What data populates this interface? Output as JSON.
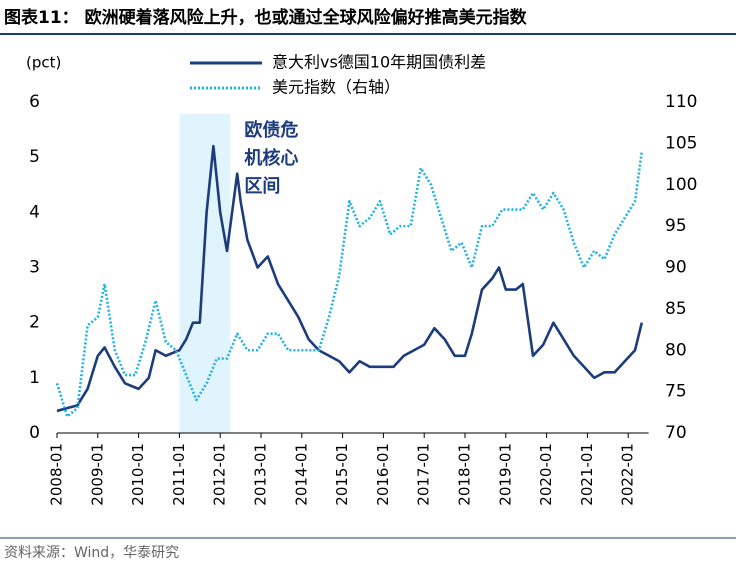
{
  "chart_data": {
    "type": "line",
    "title": "图表11：  欧洲硬着落风险上升，也或通过全球风险偏好推高美元指数",
    "y_unit": "(pct)",
    "source": "资料来源：Wind，华泰研究",
    "annotation": {
      "lines": [
        "欧债危",
        "机核心",
        "区间"
      ],
      "span": [
        "2011-01",
        "2012-04"
      ],
      "color": "#dff4fc"
    },
    "xlim": [
      "2008-01",
      "2022-07"
    ],
    "xticks": [
      "2008-01",
      "2009-01",
      "2010-01",
      "2011-01",
      "2012-01",
      "2013-01",
      "2014-01",
      "2015-01",
      "2016-01",
      "2017-01",
      "2018-01",
      "2019-01",
      "2020-01",
      "2021-01",
      "2022-01"
    ],
    "ylim": [
      0,
      6
    ],
    "yticks": [
      0,
      1,
      2,
      3,
      4,
      5,
      6
    ],
    "y2lim": [
      70,
      110
    ],
    "y2ticks": [
      70,
      75,
      80,
      85,
      90,
      95,
      100,
      105,
      110
    ],
    "series": [
      {
        "name": "意大利vs德国10年期国债利差",
        "color": "#1c3c7c",
        "style": "solid",
        "x": [
          "2008-01",
          "2008-04",
          "2008-07",
          "2008-10",
          "2009-01",
          "2009-03",
          "2009-06",
          "2009-09",
          "2010-01",
          "2010-04",
          "2010-06",
          "2010-09",
          "2011-01",
          "2011-03",
          "2011-05",
          "2011-07",
          "2011-08",
          "2011-09",
          "2011-11",
          "2012-01",
          "2012-03",
          "2012-06",
          "2012-07",
          "2012-09",
          "2012-12",
          "2013-03",
          "2013-06",
          "2013-09",
          "2013-12",
          "2014-03",
          "2014-06",
          "2014-09",
          "2014-12",
          "2015-03",
          "2015-06",
          "2015-09",
          "2016-01",
          "2016-04",
          "2016-07",
          "2016-10",
          "2017-01",
          "2017-04",
          "2017-07",
          "2017-10",
          "2018-01",
          "2018-03",
          "2018-06",
          "2018-09",
          "2018-11",
          "2019-01",
          "2019-04",
          "2019-06",
          "2019-09",
          "2019-12",
          "2020-03",
          "2020-06",
          "2020-09",
          "2020-12",
          "2021-03",
          "2021-06",
          "2021-09",
          "2021-12",
          "2022-03",
          "2022-05"
        ],
        "values": [
          0.4,
          0.45,
          0.5,
          0.8,
          1.4,
          1.55,
          1.2,
          0.9,
          0.8,
          1.0,
          1.5,
          1.4,
          1.5,
          1.7,
          2.0,
          2.0,
          3.0,
          4.0,
          5.2,
          4.0,
          3.3,
          4.7,
          4.2,
          3.5,
          3.0,
          3.2,
          2.7,
          2.4,
          2.1,
          1.7,
          1.5,
          1.4,
          1.3,
          1.1,
          1.3,
          1.2,
          1.2,
          1.2,
          1.4,
          1.5,
          1.6,
          1.9,
          1.7,
          1.4,
          1.4,
          1.8,
          2.6,
          2.8,
          3.0,
          2.6,
          2.6,
          2.7,
          1.4,
          1.6,
          2.0,
          1.7,
          1.4,
          1.2,
          1.0,
          1.1,
          1.1,
          1.3,
          1.5,
          2.0
        ]
      },
      {
        "name": "美元指数（右轴）",
        "color": "#1fb3e3",
        "style": "dotted",
        "axis": "y2",
        "x": [
          "2008-01",
          "2008-04",
          "2008-07",
          "2008-10",
          "2009-01",
          "2009-03",
          "2009-06",
          "2009-09",
          "2009-12",
          "2010-03",
          "2010-06",
          "2010-09",
          "2010-12",
          "2011-03",
          "2011-06",
          "2011-09",
          "2011-12",
          "2012-03",
          "2012-06",
          "2012-09",
          "2012-12",
          "2013-03",
          "2013-06",
          "2013-09",
          "2013-12",
          "2014-03",
          "2014-06",
          "2014-09",
          "2014-12",
          "2015-03",
          "2015-06",
          "2015-09",
          "2015-12",
          "2016-03",
          "2016-06",
          "2016-09",
          "2016-12",
          "2017-03",
          "2017-06",
          "2017-09",
          "2017-12",
          "2018-03",
          "2018-06",
          "2018-09",
          "2018-12",
          "2019-03",
          "2019-06",
          "2019-09",
          "2019-12",
          "2020-03",
          "2020-06",
          "2020-09",
          "2020-12",
          "2021-03",
          "2021-06",
          "2021-09",
          "2021-12",
          "2022-03",
          "2022-05"
        ],
        "values": [
          76,
          72,
          73,
          83,
          84,
          88,
          80,
          77,
          77,
          81,
          86,
          81,
          80,
          77,
          74,
          76,
          79,
          79,
          82,
          80,
          80,
          82,
          82,
          80,
          80,
          80,
          80,
          84,
          89,
          98,
          95,
          96,
          98,
          94,
          95,
          95,
          102,
          100,
          96,
          92,
          93,
          90,
          95,
          95,
          97,
          97,
          97,
          99,
          97,
          99,
          97,
          93,
          90,
          92,
          91,
          94,
          96,
          98,
          104
        ]
      }
    ]
  }
}
